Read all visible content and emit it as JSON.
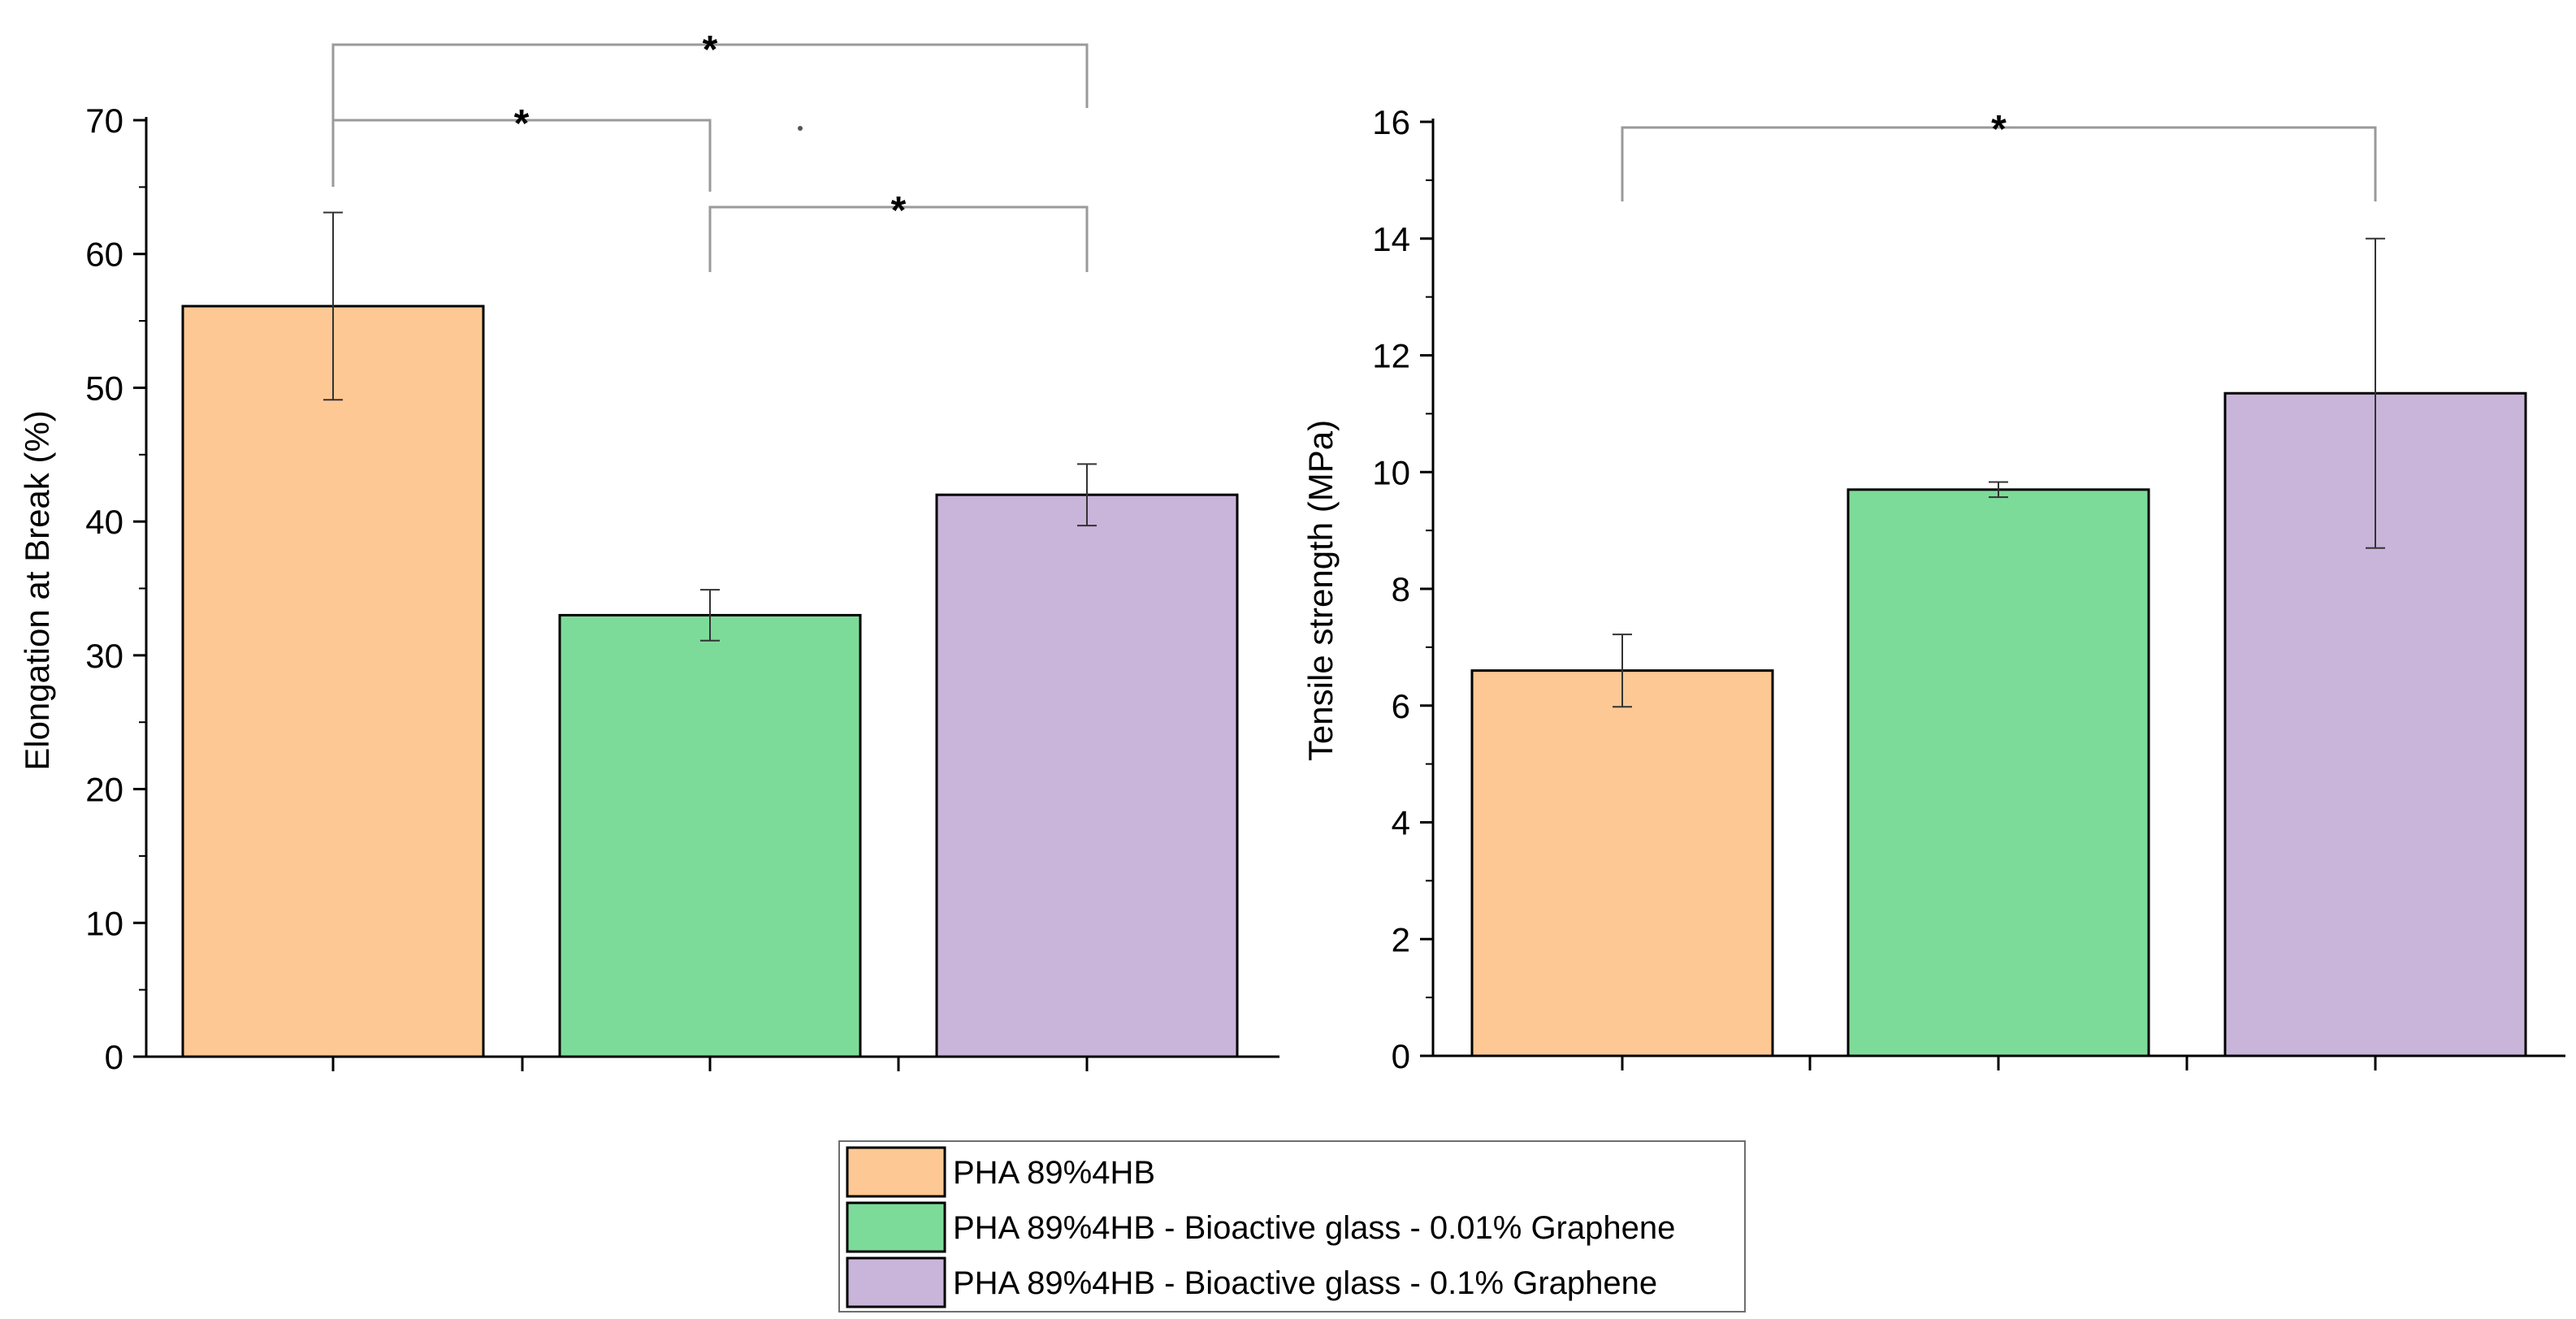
{
  "chart_data": [
    {
      "type": "bar",
      "title": "",
      "xlabel": "",
      "ylabel": "Elongation at Break (%)",
      "ylim": [
        0,
        70
      ],
      "yticks": [
        0,
        10,
        20,
        30,
        40,
        50,
        60,
        70
      ],
      "categories": [
        "PHA 89%4HB",
        "PHA 89%4HB - Bioactive glass - 0.01% Graphene",
        "PHA 89%4HB - Bioactive glass - 0.1% Graphene"
      ],
      "values": [
        56.1,
        33.0,
        42.0
      ],
      "errors": [
        7.0,
        1.9,
        2.3
      ],
      "significance": [
        {
          "from": 0,
          "to": 1,
          "label": "*"
        },
        {
          "from": 0,
          "to": 2,
          "label": "*"
        },
        {
          "from": 1,
          "to": 2,
          "label": "*"
        }
      ]
    },
    {
      "type": "bar",
      "title": "",
      "xlabel": "",
      "ylabel": "Tensile strength (MPa)",
      "ylim": [
        0,
        16
      ],
      "yticks": [
        0,
        2,
        4,
        6,
        8,
        10,
        12,
        14,
        16
      ],
      "categories": [
        "PHA 89%4HB",
        "PHA 89%4HB - Bioactive glass - 0.01% Graphene",
        "PHA 89%4HB - Bioactive glass - 0.1% Graphene"
      ],
      "values": [
        6.6,
        9.7,
        11.35
      ],
      "errors": [
        0.62,
        0.13,
        2.65
      ],
      "significance": [
        {
          "from": 0,
          "to": 2,
          "label": "*"
        }
      ]
    }
  ],
  "legend": {
    "entries": [
      {
        "label": "PHA 89%4HB",
        "color": "#FDC894"
      },
      {
        "label": "PHA 89%4HB - Bioactive glass - 0.01% Graphene",
        "color": "#7DDB9A"
      },
      {
        "label": "PHA 89%4HB - Bioactive glass - 0.1% Graphene",
        "color": "#C9B4DA"
      }
    ]
  },
  "colors": {
    "bars": [
      "#FDC894",
      "#7DDB9A",
      "#C9B4DA"
    ],
    "axis": "#000000",
    "bracket": "#9a9a9a",
    "error_bar": "#333333"
  }
}
